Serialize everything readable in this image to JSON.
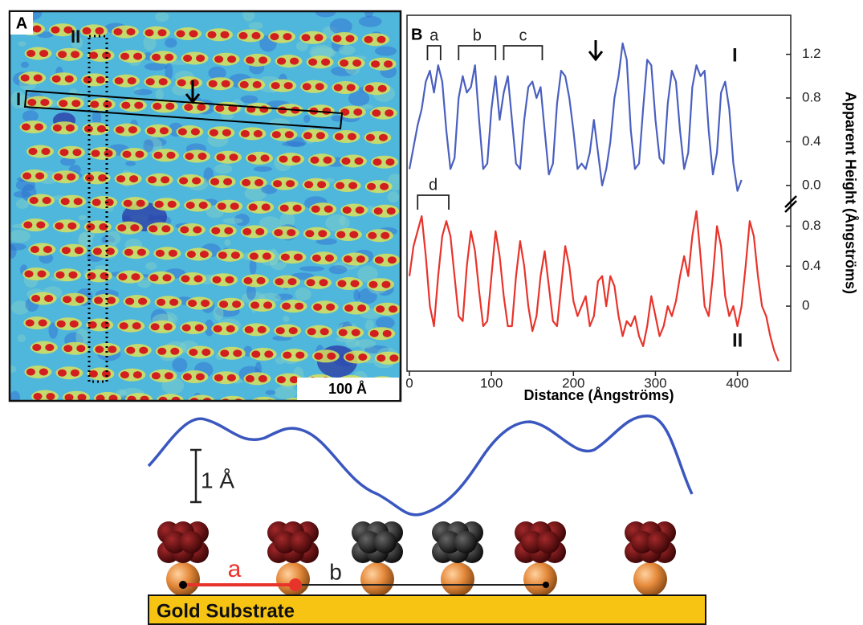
{
  "panel_a": {
    "label": "A",
    "line_i_label": "I",
    "line_ii_label": "II",
    "scale_bar": "100 Å"
  },
  "chart_data": {
    "type": "line",
    "label": "B",
    "xlabel": "Distance (Ångströms)",
    "ylabel": "Apparent Height (Ångströms)",
    "xlim": [
      0,
      465
    ],
    "xticks": [
      0,
      100,
      200,
      300,
      400
    ],
    "ylim": [
      -1.7,
      1.55
    ],
    "yticks": [
      1.2,
      0.8,
      0.4,
      {
        "value": 0,
        "label": "0.0"
      }
    ],
    "y2lim": [
      -0.65,
      2.9
    ],
    "y2ticks": [
      0.8,
      0.4,
      0
    ],
    "annotations": [
      "a",
      "b",
      "c",
      "d"
    ],
    "series": [
      {
        "name": "I",
        "color": "#4a5fbf",
        "x": [
          0,
          5,
          10,
          15,
          20,
          25,
          30,
          35,
          40,
          45,
          50,
          55,
          60,
          65,
          70,
          75,
          80,
          85,
          90,
          95,
          100,
          105,
          110,
          115,
          120,
          125,
          130,
          135,
          140,
          145,
          150,
          155,
          160,
          165,
          170,
          175,
          180,
          185,
          190,
          195,
          200,
          205,
          210,
          215,
          220,
          225,
          230,
          235,
          240,
          245,
          250,
          255,
          260,
          265,
          270,
          275,
          280,
          285,
          290,
          295,
          300,
          305,
          310,
          315,
          320,
          325,
          330,
          335,
          340,
          345,
          350,
          355,
          360,
          365,
          370,
          375,
          380,
          385,
          390,
          395,
          400,
          405
        ],
        "values": [
          0.15,
          0.35,
          0.55,
          0.7,
          0.95,
          1.05,
          0.85,
          1.1,
          0.95,
          0.5,
          0.15,
          0.25,
          0.8,
          1.0,
          0.85,
          0.9,
          1.1,
          0.6,
          0.15,
          0.2,
          0.7,
          1.0,
          0.6,
          0.85,
          1.0,
          0.6,
          0.2,
          0.15,
          0.6,
          0.9,
          0.95,
          0.8,
          0.9,
          0.5,
          0.1,
          0.2,
          0.75,
          1.05,
          1.0,
          0.8,
          0.5,
          0.15,
          0.2,
          0.15,
          0.3,
          0.6,
          0.3,
          0.0,
          0.15,
          0.4,
          0.8,
          1.0,
          1.3,
          1.15,
          0.5,
          0.15,
          0.2,
          0.7,
          1.15,
          1.1,
          0.6,
          0.25,
          0.2,
          0.75,
          1.05,
          0.95,
          0.5,
          0.15,
          0.3,
          0.9,
          1.1,
          1.0,
          1.05,
          0.5,
          0.1,
          0.3,
          0.85,
          0.95,
          0.7,
          0.2,
          -0.05,
          0.05
        ]
      },
      {
        "name": "II",
        "color": "#e8332b",
        "axis": "y2",
        "x": [
          0,
          5,
          10,
          15,
          20,
          25,
          30,
          35,
          40,
          45,
          50,
          55,
          60,
          65,
          70,
          75,
          80,
          85,
          90,
          95,
          100,
          105,
          110,
          115,
          120,
          125,
          130,
          135,
          140,
          145,
          150,
          155,
          160,
          165,
          170,
          175,
          180,
          185,
          190,
          195,
          200,
          205,
          210,
          215,
          220,
          225,
          230,
          235,
          240,
          245,
          250,
          255,
          260,
          265,
          270,
          275,
          280,
          285,
          290,
          295,
          300,
          305,
          310,
          315,
          320,
          325,
          330,
          335,
          340,
          345,
          350,
          355,
          360,
          365,
          370,
          375,
          380,
          385,
          390,
          395,
          400,
          405,
          410,
          415,
          420,
          425,
          430,
          435,
          440,
          445,
          450
        ],
        "values": [
          0.3,
          0.6,
          0.75,
          0.9,
          0.5,
          0.0,
          -0.2,
          0.3,
          0.7,
          0.85,
          0.7,
          0.3,
          -0.1,
          -0.15,
          0.4,
          0.75,
          0.55,
          0.15,
          -0.2,
          -0.15,
          0.3,
          0.75,
          0.5,
          0.1,
          -0.2,
          -0.2,
          0.3,
          0.65,
          0.4,
          0.0,
          -0.25,
          -0.1,
          0.3,
          0.55,
          0.2,
          -0.15,
          -0.2,
          0.2,
          0.6,
          0.4,
          0.05,
          -0.1,
          0.0,
          0.1,
          -0.2,
          -0.1,
          0.25,
          0.3,
          0.0,
          0.3,
          0.2,
          -0.1,
          -0.3,
          -0.15,
          -0.2,
          -0.1,
          -0.3,
          -0.4,
          -0.2,
          0.1,
          -0.1,
          -0.3,
          -0.2,
          0.0,
          -0.1,
          0.05,
          0.3,
          0.5,
          0.3,
          0.7,
          0.95,
          0.5,
          0.0,
          -0.1,
          0.3,
          0.8,
          0.6,
          0.1,
          -0.1,
          0.0,
          -0.2,
          0.0,
          0.4,
          0.85,
          0.7,
          0.3,
          0.0,
          -0.1,
          -0.3,
          -0.45,
          -0.55
        ]
      }
    ]
  },
  "schematic": {
    "scale_label": "1 Å",
    "spacing_a": "a",
    "spacing_b": "b",
    "substrate": "Gold Substrate"
  }
}
